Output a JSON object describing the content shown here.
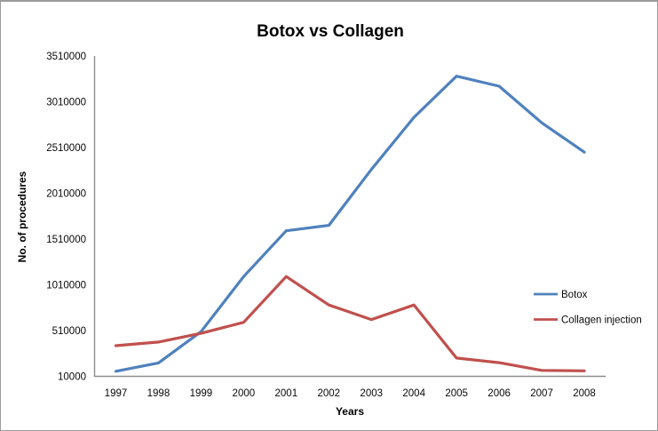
{
  "window": {
    "background": "#FFFFFF",
    "border_color": "#9B9B9B"
  },
  "chart_data": {
    "type": "line",
    "title": "Botox vs Collagen",
    "xlabel": "Years",
    "ylabel": "No. of procedures",
    "categories": [
      "1997",
      "1998",
      "1999",
      "2000",
      "2001",
      "2002",
      "2003",
      "2004",
      "2005",
      "2006",
      "2007",
      "2008"
    ],
    "series": [
      {
        "name": "Botox",
        "color": "#4F81BD",
        "values": [
          65000,
          157000,
          498000,
          1100000,
          1600000,
          1660000,
          2270000,
          2840000,
          3290000,
          3180000,
          2780000,
          2460000
        ]
      },
      {
        "name": "Collagen injection",
        "color": "#C0504D",
        "values": [
          345000,
          385000,
          480000,
          600000,
          1100000,
          790000,
          630000,
          790000,
          210000,
          160000,
          75000,
          70000
        ]
      }
    ],
    "ylim": [
      10000,
      3510000
    ],
    "yticks": [
      10000,
      510000,
      1010000,
      1510000,
      2010000,
      2510000,
      3010000,
      3510000
    ],
    "ytick_step": 500000,
    "grid": "off",
    "markers": "none",
    "legend_position": "right",
    "axis_color": "#8C8C8C",
    "text_color": "#080808"
  }
}
